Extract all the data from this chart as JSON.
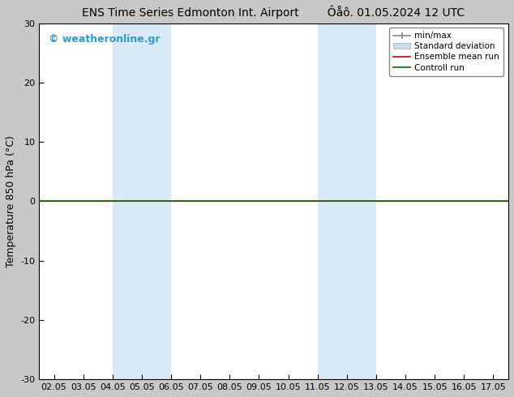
{
  "title_left": "ENS Time Series Edmonton Int. Airport",
  "title_right": "Ôåô. 01.05.2024 12 UTC",
  "ylabel": "Temperature 850 hPa (°C)",
  "watermark": "© weatheronline.gr",
  "ylim": [
    -30,
    30
  ],
  "yticks": [
    -30,
    -20,
    -10,
    0,
    10,
    20,
    30
  ],
  "xtick_labels": [
    "02.05",
    "03.05",
    "04.05",
    "05.05",
    "06.05",
    "07.05",
    "08.05",
    "09.05",
    "10.05",
    "11.05",
    "12.05",
    "13.05",
    "14.05",
    "15.05",
    "16.05",
    "17.05"
  ],
  "xtick_positions": [
    0,
    1,
    2,
    3,
    4,
    5,
    6,
    7,
    8,
    9,
    10,
    11,
    12,
    13,
    14,
    15
  ],
  "shaded_regions": [
    {
      "x_start": 2,
      "x_end": 4,
      "color": "#d8eaf7"
    },
    {
      "x_start": 9,
      "x_end": 11,
      "color": "#d8eaf7"
    }
  ],
  "control_run_color": "#006600",
  "ensemble_mean_color": "#cc0000",
  "bg_color": "#c8c8c8",
  "plot_bg_color": "#ffffff",
  "spine_color": "#000000",
  "legend_labels": [
    "min/max",
    "Standard deviation",
    "Ensemble mean run",
    "Controll run"
  ],
  "minmax_color": "#888888",
  "stddev_color": "#c8dce8",
  "watermark_color": "#3399cc",
  "title_fontsize": 10,
  "label_fontsize": 9,
  "tick_fontsize": 8,
  "watermark_fontsize": 9
}
